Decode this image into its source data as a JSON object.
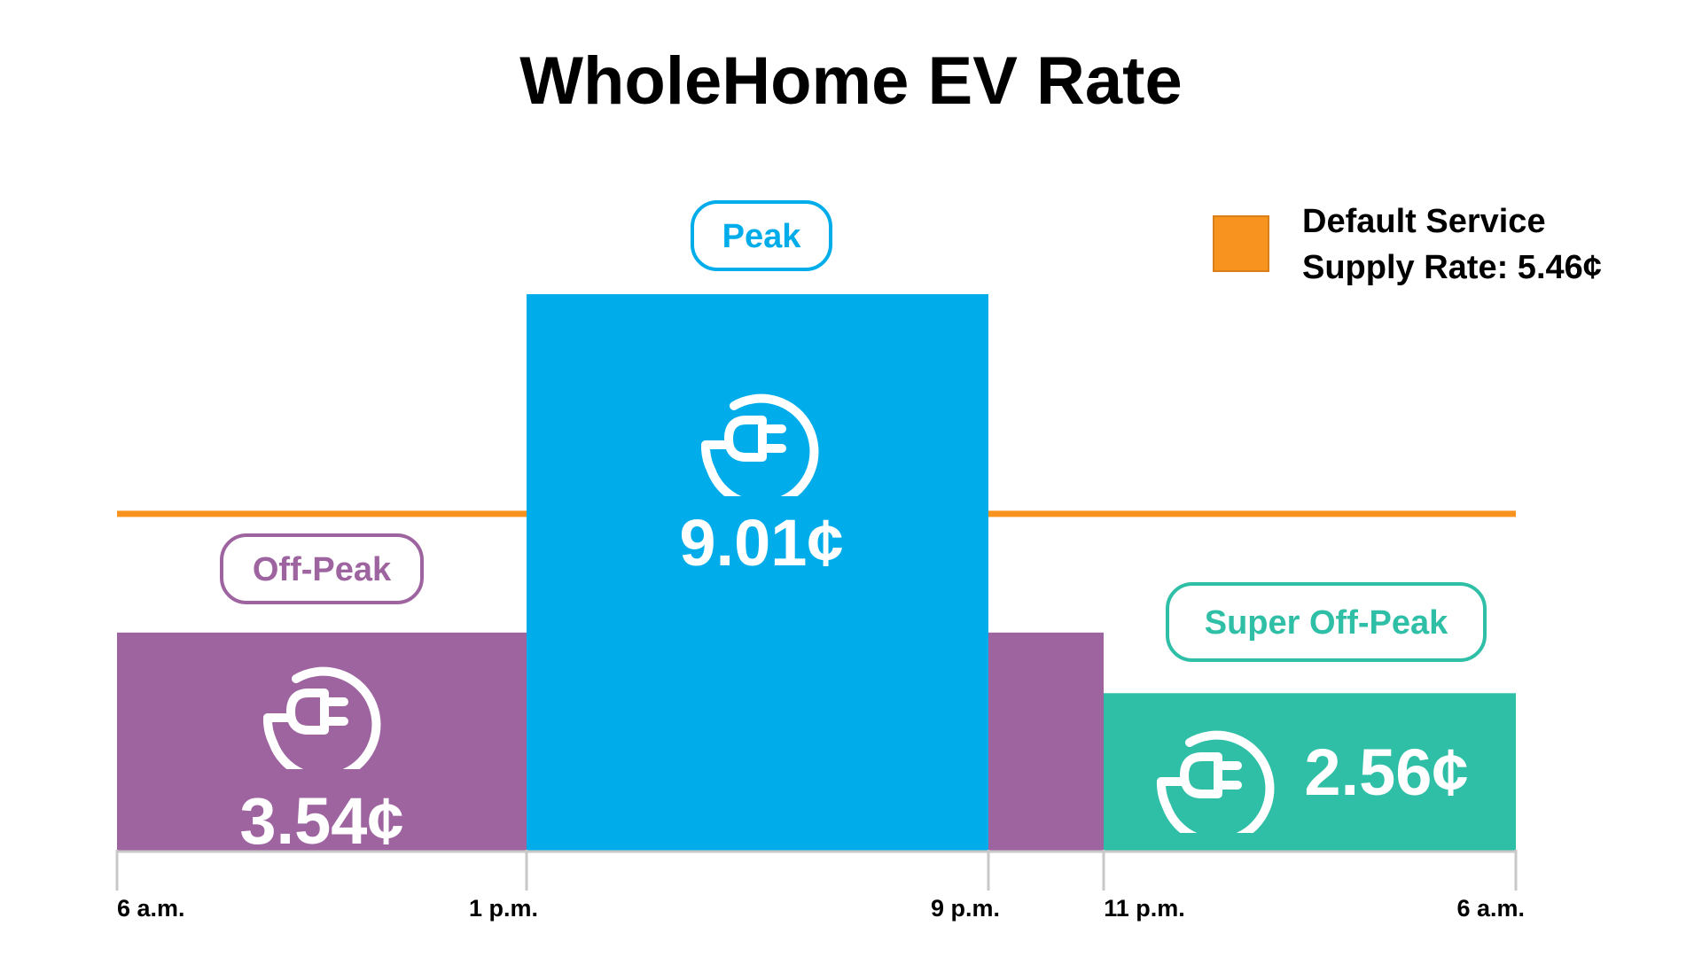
{
  "chart_data": {
    "type": "bar",
    "title": "WholeHome EV Rate",
    "unit": "¢",
    "time_ticks": [
      "6 a.m.",
      "1 p.m.",
      "9 p.m.",
      "11 p.m.",
      "6 a.m."
    ],
    "tick_hours": [
      0,
      7,
      15,
      17,
      24
    ],
    "y_range": [
      0,
      9.5
    ],
    "periods": [
      {
        "name": "Off-Peak",
        "start_hour": 0,
        "end_hour": 7,
        "value": 3.54,
        "color": "#9E64A0"
      },
      {
        "name": "Peak",
        "start_hour": 7,
        "end_hour": 15,
        "value": 9.01,
        "color": "#00ADEA"
      },
      {
        "name": "Off-Peak",
        "start_hour": 15,
        "end_hour": 17,
        "value": 3.54,
        "color": "#9E64A0"
      },
      {
        "name": "Super Off-Peak",
        "start_hour": 17,
        "end_hour": 24,
        "value": 2.56,
        "color": "#2FBFA7"
      }
    ],
    "labels": {
      "off_peak": {
        "pill": "Off-Peak",
        "value": "3.54¢",
        "color": "#9E64A0"
      },
      "peak": {
        "pill": "Peak",
        "value": "9.01¢",
        "color": "#00ADEA"
      },
      "super_off_peak": {
        "pill": "Super Off-Peak",
        "value": "2.56¢",
        "color": "#2FBFA7"
      }
    },
    "reference_line": {
      "name": "Default Service Supply Rate",
      "value": 5.46,
      "color": "#F7931E"
    },
    "legend": {
      "line1": "Default Service",
      "line2": "Supply Rate: 5.46¢",
      "color": "#F7931E",
      "position": "top-right"
    },
    "icon": "ev-plug-icon"
  }
}
